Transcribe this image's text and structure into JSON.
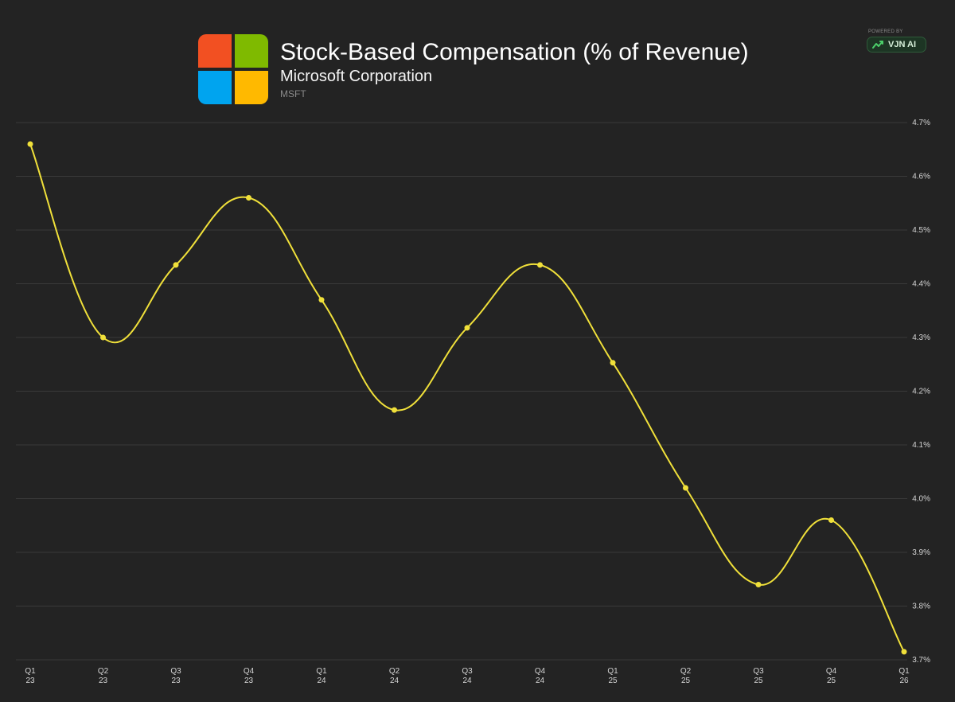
{
  "header": {
    "title": "Stock-Based Compensation (% of Revenue)",
    "company": "Microsoft Corporation",
    "ticker": "MSFT"
  },
  "logo": {
    "icon": "microsoft-logo-icon",
    "colors": [
      "#f25022",
      "#7fba00",
      "#00a4ef",
      "#ffb900"
    ]
  },
  "branding": {
    "powered_by": "POWERED BY",
    "name": "VJN AI",
    "icon": "trending-up-icon"
  },
  "colors": {
    "background": "#232323",
    "line": "#f0e03a",
    "grid": "#3a3a3a",
    "text": "#d4d4d4"
  },
  "chart_data": {
    "type": "line",
    "categories": [
      [
        "Q1",
        "23"
      ],
      [
        "Q2",
        "23"
      ],
      [
        "Q3",
        "23"
      ],
      [
        "Q4",
        "23"
      ],
      [
        "Q1",
        "24"
      ],
      [
        "Q2",
        "24"
      ],
      [
        "Q3",
        "24"
      ],
      [
        "Q4",
        "24"
      ],
      [
        "Q1",
        "25"
      ],
      [
        "Q2",
        "25"
      ],
      [
        "Q3",
        "25"
      ],
      [
        "Q4",
        "25"
      ],
      [
        "Q1",
        "26"
      ]
    ],
    "series": [
      {
        "values": [
          4.66,
          4.3,
          4.435,
          4.56,
          4.37,
          4.165,
          4.318,
          4.435,
          4.253,
          4.02,
          3.84,
          3.96,
          3.715
        ]
      }
    ],
    "y_ticks": [
      "3.7%",
      "3.8%",
      "3.9%",
      "4.0%",
      "4.1%",
      "4.2%",
      "4.3%",
      "4.4%",
      "4.5%",
      "4.6%",
      "4.7%"
    ],
    "ylim": [
      3.7,
      4.7
    ],
    "y_axis_side": "right",
    "grid": true,
    "smooth": true,
    "title": "Stock-Based Compensation (% of Revenue)"
  }
}
